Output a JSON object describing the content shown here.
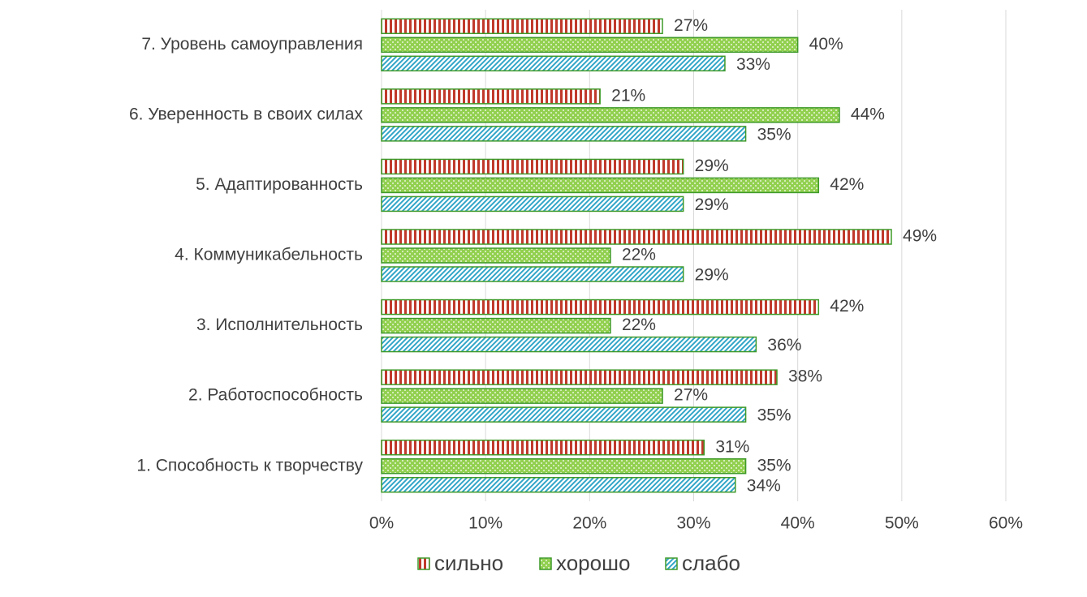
{
  "chart_data": {
    "type": "hbar",
    "categories": [
      "1. Способность к творчеству",
      "2. Работоспособность",
      "3. Исполнительность",
      "4. Коммуникабельность",
      "5. Адаптированность",
      "6. Уверенность в своих силах",
      "7. Уровень самоуправления"
    ],
    "series": [
      {
        "name": "сильно",
        "color": "#c0392b",
        "values": [
          31,
          38,
          42,
          49,
          29,
          21,
          27
        ],
        "value_labels": [
          "31%",
          "38%",
          "42%",
          "49%",
          "29%",
          "21%",
          "27%"
        ]
      },
      {
        "name": "хорошо",
        "color": "#92d050",
        "values": [
          35,
          27,
          22,
          22,
          42,
          44,
          40
        ],
        "value_labels": [
          "35%",
          "27%",
          "22%",
          "22%",
          "42%",
          "44%",
          "40%"
        ]
      },
      {
        "name": "слабо",
        "color": "#31a5c8",
        "values": [
          34,
          35,
          36,
          29,
          29,
          35,
          33
        ],
        "value_labels": [
          "34%",
          "35%",
          "36%",
          "29%",
          "29%",
          "35%",
          "33%"
        ]
      }
    ],
    "xlim": [
      0,
      60
    ],
    "xticks": [
      {
        "value": 0,
        "label": "0%"
      },
      {
        "value": 10,
        "label": "10%"
      },
      {
        "value": 20,
        "label": "20%"
      },
      {
        "value": 30,
        "label": "30%"
      },
      {
        "value": 40,
        "label": "40%"
      },
      {
        "value": 50,
        "label": "50%"
      },
      {
        "value": 60,
        "label": "60%"
      }
    ],
    "grid": true,
    "legend": "bottom"
  }
}
